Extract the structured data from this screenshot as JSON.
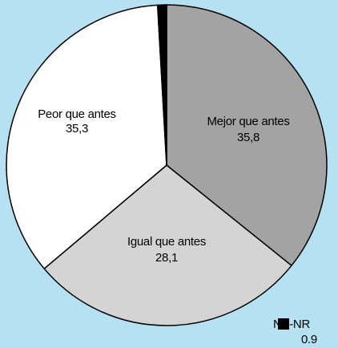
{
  "chart_data": {
    "type": "pie",
    "categories": [
      "Mejor que antes",
      "Igual que antes",
      "Peor que antes",
      "NS-NR"
    ],
    "values": [
      35.8,
      28.1,
      35.3,
      0.9
    ],
    "value_labels": [
      "35,8",
      "28,1",
      "35,3",
      "0.9"
    ],
    "colors": [
      "#a3a3a3",
      "#d4d4d4",
      "#ffffff",
      "#000000"
    ]
  }
}
